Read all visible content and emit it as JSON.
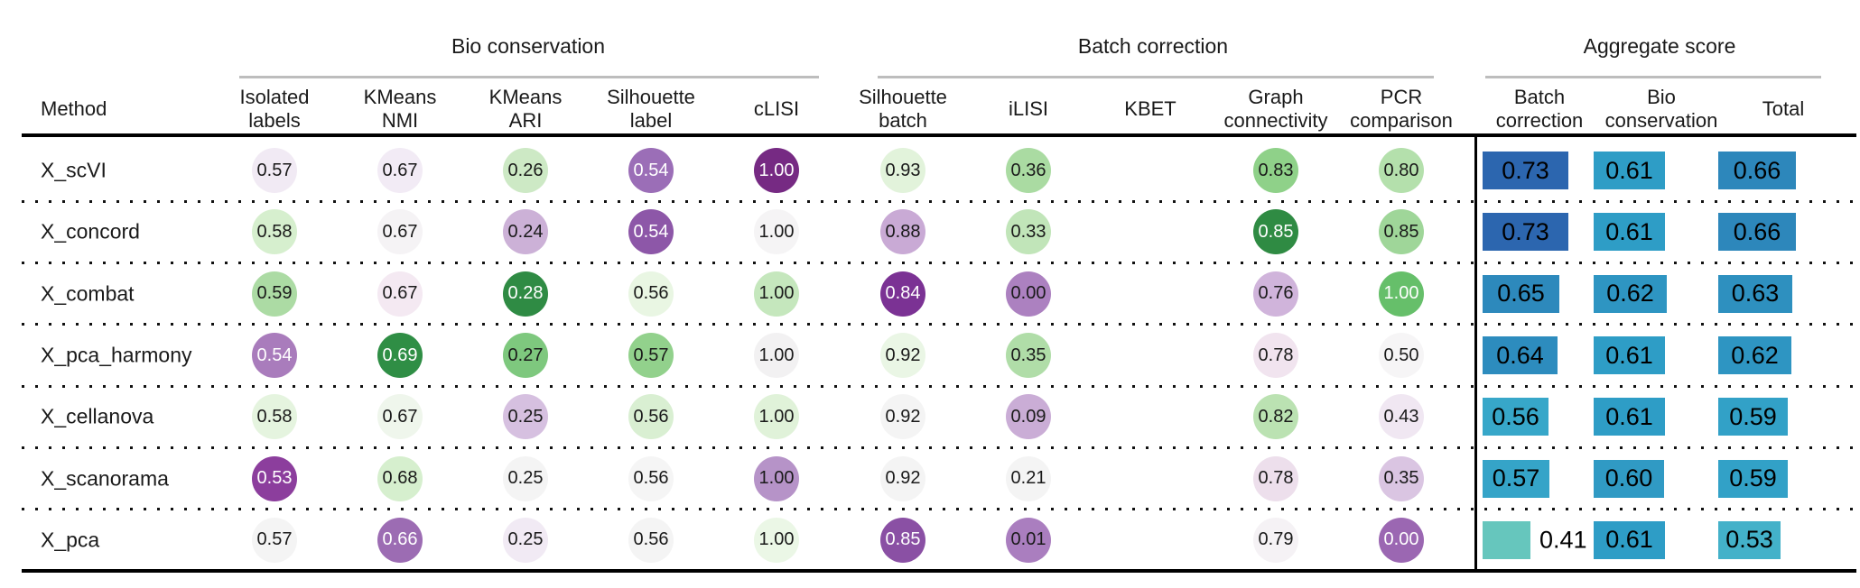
{
  "table": {
    "method_header": "Method",
    "groups": [
      {
        "label": "Bio conservation"
      },
      {
        "label": "Batch correction"
      },
      {
        "label": "Aggregate score"
      }
    ],
    "columns": [
      {
        "label": "Isolated\nlabels"
      },
      {
        "label": "KMeans\nNMI"
      },
      {
        "label": "KMeans\nARI"
      },
      {
        "label": "Silhouette\nlabel"
      },
      {
        "label": "cLISI"
      },
      {
        "label": "Silhouette\nbatch"
      },
      {
        "label": "iLISI"
      },
      {
        "label": "KBET"
      },
      {
        "label": "Graph\nconnectivity"
      },
      {
        "label": "PCR\ncomparison"
      }
    ],
    "aggregate_columns": [
      {
        "label": "Batch\ncorrection"
      },
      {
        "label": "Bio\nconservation"
      },
      {
        "label": "Total"
      }
    ],
    "rows": [
      {
        "method": "X_scVI",
        "metrics": [
          {
            "v": "0.57",
            "bg": "#f1eaf4",
            "fg": "#1a1a1a"
          },
          {
            "v": "0.67",
            "bg": "#f2ebf5",
            "fg": "#1a1a1a"
          },
          {
            "v": "0.26",
            "bg": "#cde9c5",
            "fg": "#1a1a1a"
          },
          {
            "v": "0.54",
            "bg": "#9b6eb7",
            "fg": "#ffffff"
          },
          {
            "v": "1.00",
            "bg": "#762a83",
            "fg": "#ffffff"
          },
          {
            "v": "0.93",
            "bg": "#e2f3db",
            "fg": "#1a1a1a"
          },
          {
            "v": "0.36",
            "bg": "#aadba2",
            "fg": "#1a1a1a"
          },
          null,
          {
            "v": "0.83",
            "bg": "#8fd189",
            "fg": "#1a1a1a"
          },
          {
            "v": "0.80",
            "bg": "#b4e0ac",
            "fg": "#1a1a1a"
          }
        ],
        "bars": [
          {
            "v": "0.73",
            "value": 0.73,
            "color": "#2c66af",
            "text_outside": false
          },
          {
            "v": "0.61",
            "value": 0.61,
            "color": "#2e9dc6",
            "text_outside": false
          },
          {
            "v": "0.66",
            "value": 0.66,
            "color": "#2d87bb",
            "text_outside": false
          }
        ]
      },
      {
        "method": "X_concord",
        "metrics": [
          {
            "v": "0.58",
            "bg": "#d6efce",
            "fg": "#1a1a1a"
          },
          {
            "v": "0.67",
            "bg": "#f5f3f5",
            "fg": "#1a1a1a"
          },
          {
            "v": "0.24",
            "bg": "#ccb1d7",
            "fg": "#1a1a1a"
          },
          {
            "v": "0.54",
            "bg": "#8d57a8",
            "fg": "#ffffff"
          },
          {
            "v": "1.00",
            "bg": "#f5f4f5",
            "fg": "#1a1a1a"
          },
          {
            "v": "0.88",
            "bg": "#c9aad5",
            "fg": "#1a1a1a"
          },
          {
            "v": "0.33",
            "bg": "#c1e5b9",
            "fg": "#1a1a1a"
          },
          null,
          {
            "v": "0.85",
            "bg": "#2f8b43",
            "fg": "#ffffff"
          },
          {
            "v": "0.85",
            "bg": "#9fd699",
            "fg": "#1a1a1a"
          }
        ],
        "bars": [
          {
            "v": "0.73",
            "value": 0.73,
            "color": "#2c66af",
            "text_outside": false
          },
          {
            "v": "0.61",
            "value": 0.61,
            "color": "#2e9dc6",
            "text_outside": false
          },
          {
            "v": "0.66",
            "value": 0.66,
            "color": "#2d87bb",
            "text_outside": false
          }
        ]
      },
      {
        "method": "X_combat",
        "metrics": [
          {
            "v": "0.59",
            "bg": "#acdba4",
            "fg": "#1a1a1a"
          },
          {
            "v": "0.67",
            "bg": "#f4e9f2",
            "fg": "#1a1a1a"
          },
          {
            "v": "0.28",
            "bg": "#2f8b44",
            "fg": "#ffffff"
          },
          {
            "v": "0.56",
            "bg": "#e9f6e3",
            "fg": "#1a1a1a"
          },
          {
            "v": "1.00",
            "bg": "#c5e7bd",
            "fg": "#1a1a1a"
          },
          {
            "v": "0.84",
            "bg": "#7b3294",
            "fg": "#ffffff"
          },
          {
            "v": "0.00",
            "bg": "#ac81c0",
            "fg": "#1a1a1a"
          },
          null,
          {
            "v": "0.76",
            "bg": "#d0b4db",
            "fg": "#1a1a1a"
          },
          {
            "v": "1.00",
            "bg": "#66bf6a",
            "fg": "#ffffff"
          }
        ],
        "bars": [
          {
            "v": "0.65",
            "value": 0.65,
            "color": "#2d89bc",
            "text_outside": false
          },
          {
            "v": "0.62",
            "value": 0.62,
            "color": "#2e95c2",
            "text_outside": false
          },
          {
            "v": "0.63",
            "value": 0.63,
            "color": "#2e90bf",
            "text_outside": false
          }
        ]
      },
      {
        "method": "X_pca_harmony",
        "metrics": [
          {
            "v": "0.54",
            "bg": "#a97cbc",
            "fg": "#ffffff"
          },
          {
            "v": "0.69",
            "bg": "#2f8e45",
            "fg": "#ffffff"
          },
          {
            "v": "0.27",
            "bg": "#7ec87e",
            "fg": "#1a1a1a"
          },
          {
            "v": "0.57",
            "bg": "#92d18c",
            "fg": "#1a1a1a"
          },
          {
            "v": "1.00",
            "bg": "#f2f1f2",
            "fg": "#1a1a1a"
          },
          {
            "v": "0.92",
            "bg": "#eaf6e5",
            "fg": "#1a1a1a"
          },
          {
            "v": "0.35",
            "bg": "#b0dda8",
            "fg": "#1a1a1a"
          },
          null,
          {
            "v": "0.78",
            "bg": "#f1e4ef",
            "fg": "#1a1a1a"
          },
          {
            "v": "0.50",
            "bg": "#f6f5f6",
            "fg": "#1a1a1a"
          }
        ],
        "bars": [
          {
            "v": "0.64",
            "value": 0.64,
            "color": "#2d8cbe",
            "text_outside": false
          },
          {
            "v": "0.61",
            "value": 0.61,
            "color": "#2e9dc6",
            "text_outside": false
          },
          {
            "v": "0.62",
            "value": 0.62,
            "color": "#2e95c2",
            "text_outside": false
          }
        ]
      },
      {
        "method": "X_cellanova",
        "metrics": [
          {
            "v": "0.58",
            "bg": "#e5f4df",
            "fg": "#1a1a1a"
          },
          {
            "v": "0.67",
            "bg": "#eff6ec",
            "fg": "#1a1a1a"
          },
          {
            "v": "0.25",
            "bg": "#d6c0e0",
            "fg": "#1a1a1a"
          },
          {
            "v": "0.56",
            "bg": "#d9efd2",
            "fg": "#1a1a1a"
          },
          {
            "v": "1.00",
            "bg": "#e0f2d9",
            "fg": "#1a1a1a"
          },
          {
            "v": "0.92",
            "bg": "#f4f4f4",
            "fg": "#1a1a1a"
          },
          {
            "v": "0.09",
            "bg": "#caadd6",
            "fg": "#1a1a1a"
          },
          null,
          {
            "v": "0.82",
            "bg": "#bbe2b2",
            "fg": "#1a1a1a"
          },
          {
            "v": "0.43",
            "bg": "#f0e7f2",
            "fg": "#1a1a1a"
          }
        ],
        "bars": [
          {
            "v": "0.56",
            "value": 0.56,
            "color": "#37a7c9",
            "text_outside": false
          },
          {
            "v": "0.61",
            "value": 0.61,
            "color": "#2e9dc6",
            "text_outside": false
          },
          {
            "v": "0.59",
            "value": 0.59,
            "color": "#32a1c7",
            "text_outside": false
          }
        ]
      },
      {
        "method": "X_scanorama",
        "metrics": [
          {
            "v": "0.53",
            "bg": "#8c3e9d",
            "fg": "#ffffff"
          },
          {
            "v": "0.68",
            "bg": "#d6efce",
            "fg": "#1a1a1a"
          },
          {
            "v": "0.25",
            "bg": "#f4f4f4",
            "fg": "#1a1a1a"
          },
          {
            "v": "0.56",
            "bg": "#f5f5f5",
            "fg": "#1a1a1a"
          },
          {
            "v": "1.00",
            "bg": "#b693c8",
            "fg": "#1a1a1a"
          },
          {
            "v": "0.92",
            "bg": "#f4f4f4",
            "fg": "#1a1a1a"
          },
          {
            "v": "0.21",
            "bg": "#f4f4f4",
            "fg": "#1a1a1a"
          },
          null,
          {
            "v": "0.78",
            "bg": "#eddfec",
            "fg": "#1a1a1a"
          },
          {
            "v": "0.35",
            "bg": "#dac5e2",
            "fg": "#1a1a1a"
          }
        ],
        "bars": [
          {
            "v": "0.57",
            "value": 0.57,
            "color": "#35a4c8",
            "text_outside": false
          },
          {
            "v": "0.60",
            "value": 0.6,
            "color": "#309ac4",
            "text_outside": false
          },
          {
            "v": "0.59",
            "value": 0.59,
            "color": "#32a1c7",
            "text_outside": false
          }
        ]
      },
      {
        "method": "X_pca",
        "metrics": [
          {
            "v": "0.57",
            "bg": "#f4f4f4",
            "fg": "#1a1a1a"
          },
          {
            "v": "0.66",
            "bg": "#9c6cb3",
            "fg": "#ffffff"
          },
          {
            "v": "0.25",
            "bg": "#f1eaf4",
            "fg": "#1a1a1a"
          },
          {
            "v": "0.56",
            "bg": "#f4f4f4",
            "fg": "#1a1a1a"
          },
          {
            "v": "1.00",
            "bg": "#ebf7e6",
            "fg": "#1a1a1a"
          },
          {
            "v": "0.85",
            "bg": "#8a50a4",
            "fg": "#ffffff"
          },
          {
            "v": "0.01",
            "bg": "#aa7ebf",
            "fg": "#1a1a1a"
          },
          null,
          {
            "v": "0.79",
            "bg": "#f5f2f5",
            "fg": "#1a1a1a"
          },
          {
            "v": "0.00",
            "bg": "#9b67b2",
            "fg": "#ffffff"
          }
        ],
        "bars": [
          {
            "v": "0.41",
            "value": 0.41,
            "color": "#66c6bd",
            "text_outside": true
          },
          {
            "v": "0.61",
            "value": 0.61,
            "color": "#2e9dc6",
            "text_outside": false
          },
          {
            "v": "0.53",
            "value": 0.53,
            "color": "#43b1c9",
            "text_outside": false
          }
        ]
      }
    ]
  },
  "chart_data": {
    "type": "table",
    "title": "",
    "row_header": "Method",
    "column_groups": {
      "Bio conservation": [
        "Isolated labels",
        "KMeans NMI",
        "KMeans ARI",
        "Silhouette label",
        "cLISI"
      ],
      "Batch correction": [
        "Silhouette batch",
        "iLISI",
        "KBET",
        "Graph connectivity",
        "PCR comparison"
      ],
      "Aggregate score": [
        "Batch correction",
        "Bio conservation",
        "Total"
      ]
    },
    "categories": [
      "Isolated labels",
      "KMeans NMI",
      "KMeans ARI",
      "Silhouette label",
      "cLISI",
      "Silhouette batch",
      "iLISI",
      "KBET",
      "Graph connectivity",
      "PCR comparison",
      "Batch correction",
      "Bio conservation",
      "Total"
    ],
    "series": [
      {
        "name": "X_scVI",
        "values": [
          0.57,
          0.67,
          0.26,
          0.54,
          1.0,
          0.93,
          0.36,
          null,
          0.83,
          0.8,
          0.73,
          0.61,
          0.66
        ]
      },
      {
        "name": "X_concord",
        "values": [
          0.58,
          0.67,
          0.24,
          0.54,
          1.0,
          0.88,
          0.33,
          null,
          0.85,
          0.85,
          0.73,
          0.61,
          0.66
        ]
      },
      {
        "name": "X_combat",
        "values": [
          0.59,
          0.67,
          0.28,
          0.56,
          1.0,
          0.84,
          0.0,
          null,
          0.76,
          1.0,
          0.65,
          0.62,
          0.63
        ]
      },
      {
        "name": "X_pca_harmony",
        "values": [
          0.54,
          0.69,
          0.27,
          0.57,
          1.0,
          0.92,
          0.35,
          null,
          0.78,
          0.5,
          0.64,
          0.61,
          0.62
        ]
      },
      {
        "name": "X_cellanova",
        "values": [
          0.58,
          0.67,
          0.25,
          0.56,
          1.0,
          0.92,
          0.09,
          null,
          0.82,
          0.43,
          0.56,
          0.61,
          0.59
        ]
      },
      {
        "name": "X_scanorama",
        "values": [
          0.53,
          0.68,
          0.25,
          0.56,
          1.0,
          0.92,
          0.21,
          null,
          0.78,
          0.35,
          0.57,
          0.6,
          0.59
        ]
      },
      {
        "name": "X_pca",
        "values": [
          0.57,
          0.66,
          0.25,
          0.56,
          1.0,
          0.85,
          0.01,
          null,
          0.79,
          0.0,
          0.41,
          0.61,
          0.53
        ]
      }
    ],
    "value_range": [
      0,
      1
    ],
    "legend_position": "none",
    "grid": "dotted-row-separators",
    "circle_colormap_hint": "purple (low rank) to green (high rank), per column",
    "bar_colormap_hint": "teal (low) to dark blue (high), bar width proportional to value"
  }
}
